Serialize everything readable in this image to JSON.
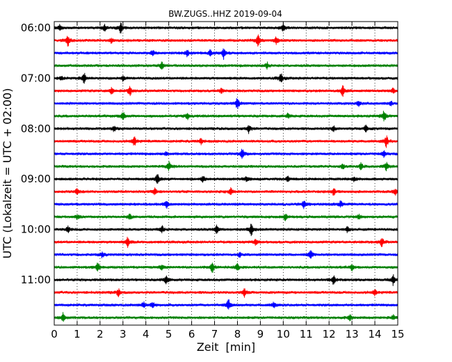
{
  "chart_data": {
    "type": "line",
    "title": "BW.ZUGS..HHZ 2019-09-04",
    "xlabel": "Zeit  [min]",
    "ylabel": "UTC (Lokalzeit = UTC + 02:00)",
    "xlim": [
      0,
      15
    ],
    "x_ticks": [
      "0",
      "1",
      "2",
      "3",
      "4",
      "5",
      "6",
      "7",
      "8",
      "9",
      "10",
      "11",
      "12",
      "13",
      "14",
      "15"
    ],
    "y_ticks": [
      "06:00",
      "07:00",
      "08:00",
      "09:00",
      "10:00",
      "11:00"
    ],
    "grid": "vertical dotted at each minute",
    "trace_start_utc": "06:00",
    "trace_interval_min": 15,
    "colors": [
      "#000000",
      "#ff0000",
      "#0000ff",
      "#008000"
    ],
    "traces": [
      {
        "time": "06:00",
        "color": "#000000",
        "events": [
          [
            0.25,
            0.5
          ],
          [
            2.2,
            0.5
          ],
          [
            2.9,
            0.9
          ],
          [
            10.0,
            0.7
          ]
        ]
      },
      {
        "time": "06:15",
        "color": "#ff0000",
        "events": [
          [
            0.6,
            1.0
          ],
          [
            2.5,
            0.4
          ],
          [
            8.9,
            1.0
          ],
          [
            9.7,
            0.6
          ]
        ]
      },
      {
        "time": "06:30",
        "color": "#0000ff",
        "events": [
          [
            4.3,
            0.5
          ],
          [
            5.8,
            0.6
          ],
          [
            6.8,
            0.5
          ],
          [
            7.4,
            1.0
          ]
        ]
      },
      {
        "time": "06:45",
        "color": "#008000",
        "events": [
          [
            4.7,
            0.7
          ],
          [
            9.3,
            0.5
          ]
        ]
      },
      {
        "time": "07:00",
        "color": "#000000",
        "events": [
          [
            0.3,
            0.4
          ],
          [
            1.3,
            0.9
          ],
          [
            3.0,
            0.4
          ],
          [
            9.9,
            0.9
          ]
        ]
      },
      {
        "time": "07:15",
        "color": "#ff0000",
        "events": [
          [
            2.5,
            0.6
          ],
          [
            3.3,
            0.8
          ],
          [
            7.3,
            0.4
          ],
          [
            12.6,
            1.0
          ],
          [
            14.8,
            0.4
          ]
        ]
      },
      {
        "time": "07:30",
        "color": "#0000ff",
        "events": [
          [
            8.0,
            1.0
          ],
          [
            13.3,
            0.5
          ],
          [
            14.7,
            0.4
          ]
        ]
      },
      {
        "time": "07:45",
        "color": "#008000",
        "events": [
          [
            3.0,
            0.8
          ],
          [
            5.8,
            0.6
          ],
          [
            10.2,
            0.4
          ],
          [
            14.4,
            1.0
          ]
        ]
      },
      {
        "time": "08:00",
        "color": "#000000",
        "events": [
          [
            2.6,
            0.5
          ],
          [
            8.5,
            0.8
          ],
          [
            12.2,
            0.5
          ],
          [
            13.6,
            0.7
          ]
        ]
      },
      {
        "time": "08:15",
        "color": "#ff0000",
        "events": [
          [
            3.5,
            0.8
          ],
          [
            6.4,
            0.5
          ],
          [
            14.5,
            1.0
          ]
        ]
      },
      {
        "time": "08:30",
        "color": "#0000ff",
        "events": [
          [
            4.9,
            0.4
          ],
          [
            8.2,
            1.0
          ],
          [
            14.4,
            0.5
          ]
        ]
      },
      {
        "time": "08:45",
        "color": "#008000",
        "events": [
          [
            5.0,
            0.8
          ],
          [
            12.6,
            0.4
          ],
          [
            13.4,
            0.6
          ],
          [
            14.5,
            0.7
          ]
        ]
      },
      {
        "time": "09:00",
        "color": "#000000",
        "events": [
          [
            4.5,
            0.9
          ],
          [
            6.5,
            0.6
          ],
          [
            8.4,
            0.5
          ],
          [
            10.2,
            0.5
          ],
          [
            13.1,
            0.4
          ]
        ]
      },
      {
        "time": "09:15",
        "color": "#ff0000",
        "events": [
          [
            1.0,
            0.6
          ],
          [
            4.4,
            0.6
          ],
          [
            7.7,
            0.6
          ],
          [
            12.2,
            0.6
          ],
          [
            14.9,
            0.6
          ]
        ]
      },
      {
        "time": "09:30",
        "color": "#0000ff",
        "events": [
          [
            4.9,
            0.7
          ],
          [
            10.9,
            0.8
          ],
          [
            12.5,
            0.5
          ]
        ]
      },
      {
        "time": "09:45",
        "color": "#008000",
        "events": [
          [
            1.0,
            0.4
          ],
          [
            3.3,
            0.5
          ],
          [
            10.1,
            0.7
          ],
          [
            13.3,
            0.4
          ]
        ]
      },
      {
        "time": "10:00",
        "color": "#000000",
        "events": [
          [
            0.6,
            0.6
          ],
          [
            4.7,
            0.6
          ],
          [
            7.1,
            0.7
          ],
          [
            8.6,
            1.0
          ],
          [
            12.8,
            0.5
          ]
        ]
      },
      {
        "time": "10:15",
        "color": "#ff0000",
        "events": [
          [
            3.2,
            0.8
          ],
          [
            8.8,
            0.5
          ],
          [
            14.3,
            0.8
          ]
        ]
      },
      {
        "time": "10:30",
        "color": "#0000ff",
        "events": [
          [
            2.1,
            0.5
          ],
          [
            8.1,
            0.4
          ],
          [
            11.2,
            0.9
          ]
        ]
      },
      {
        "time": "10:45",
        "color": "#008000",
        "events": [
          [
            1.9,
            0.8
          ],
          [
            4.7,
            0.5
          ],
          [
            6.9,
            0.9
          ],
          [
            8.0,
            0.6
          ],
          [
            13.0,
            0.5
          ]
        ]
      },
      {
        "time": "11:00",
        "color": "#000000",
        "events": [
          [
            4.9,
            0.8
          ],
          [
            12.2,
            0.8
          ],
          [
            14.8,
            0.9
          ]
        ]
      },
      {
        "time": "11:15",
        "color": "#ff0000",
        "events": [
          [
            2.8,
            0.6
          ],
          [
            8.3,
            0.8
          ],
          [
            14.0,
            0.5
          ]
        ]
      },
      {
        "time": "11:30",
        "color": "#0000ff",
        "events": [
          [
            3.9,
            0.5
          ],
          [
            4.3,
            0.5
          ],
          [
            7.6,
            1.0
          ],
          [
            9.6,
            0.5
          ]
        ]
      },
      {
        "time": "11:45",
        "color": "#008000",
        "events": [
          [
            0.4,
            0.9
          ],
          [
            12.9,
            0.5
          ],
          [
            14.8,
            0.4
          ]
        ]
      }
    ]
  }
}
